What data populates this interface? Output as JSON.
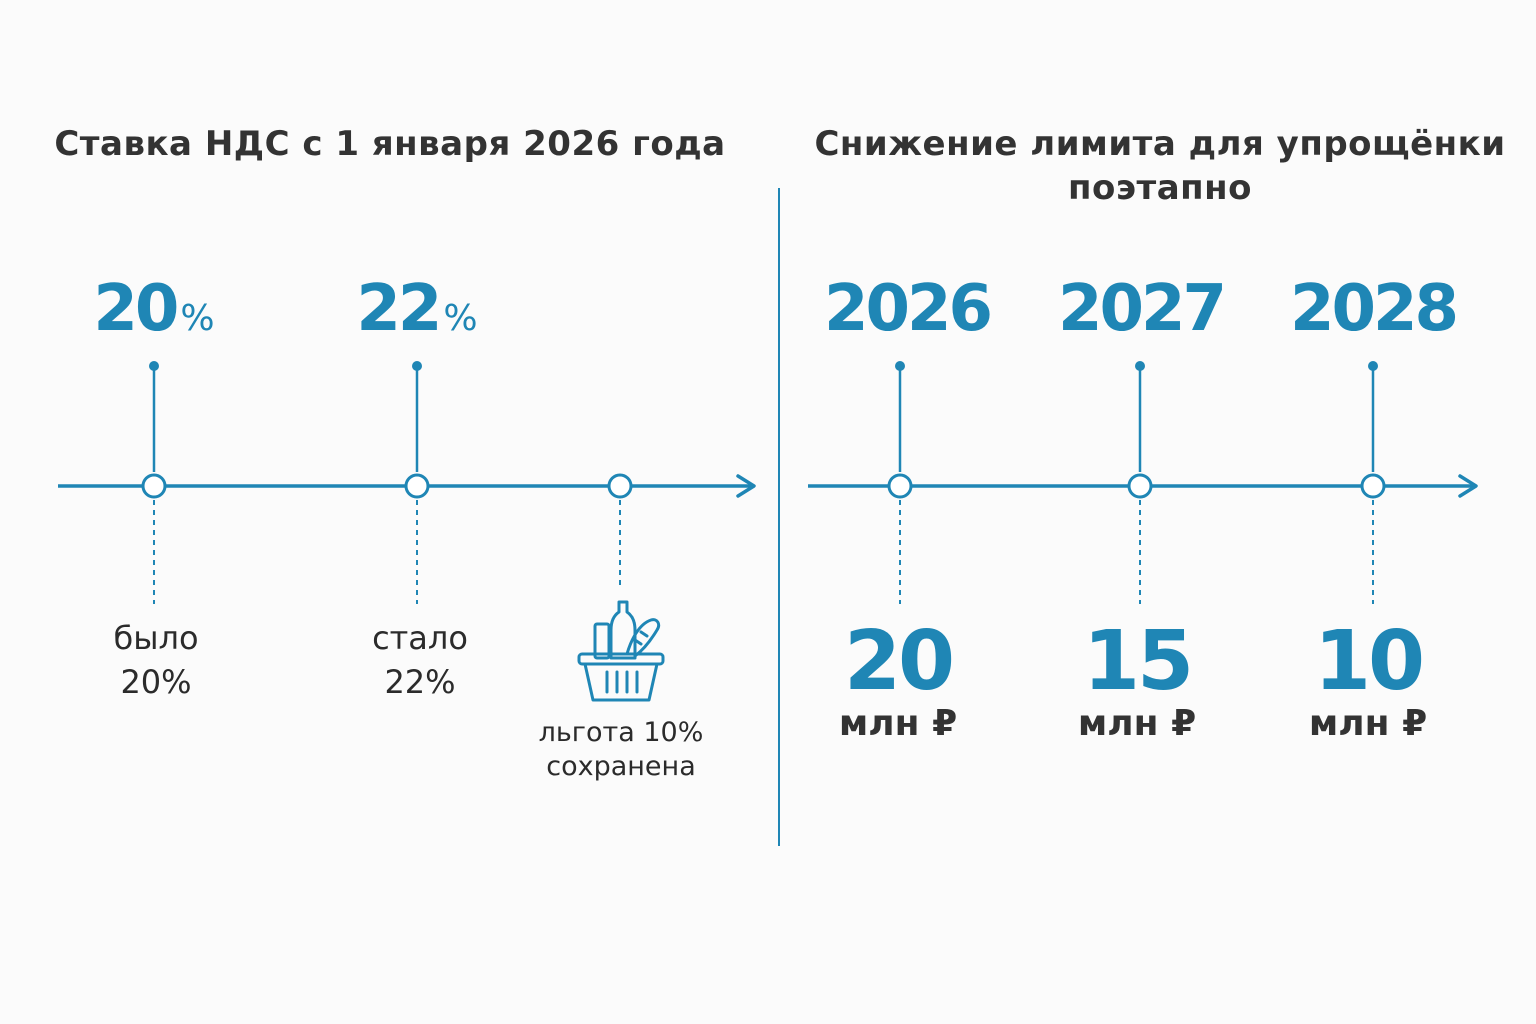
{
  "colors": {
    "accent": "#1f86b5",
    "text": "#2b2b2b",
    "background": "#fbfbfb"
  },
  "vat": {
    "title": "Ставка НДС с 1 января 2026 года",
    "markers": [
      {
        "number": "20",
        "symbol": "%"
      },
      {
        "number": "22",
        "symbol": "%"
      }
    ],
    "captions": [
      {
        "line1": "было",
        "line2": "20%"
      },
      {
        "line1": "стало",
        "line2": "22%"
      },
      {
        "line1": "льгота 10%",
        "line2": "сохранена"
      }
    ],
    "basket_icon": "grocery-basket-icon"
  },
  "usn": {
    "title_line1": "Снижение лимита для упрощёнки",
    "title_line2": "поэтапно",
    "years": [
      "2026",
      "2027",
      "2028"
    ],
    "limits": [
      {
        "value": "20",
        "unit": "млн ₽"
      },
      {
        "value": "15",
        "unit": "млн ₽"
      },
      {
        "value": "10",
        "unit": "млн ₽"
      }
    ]
  }
}
